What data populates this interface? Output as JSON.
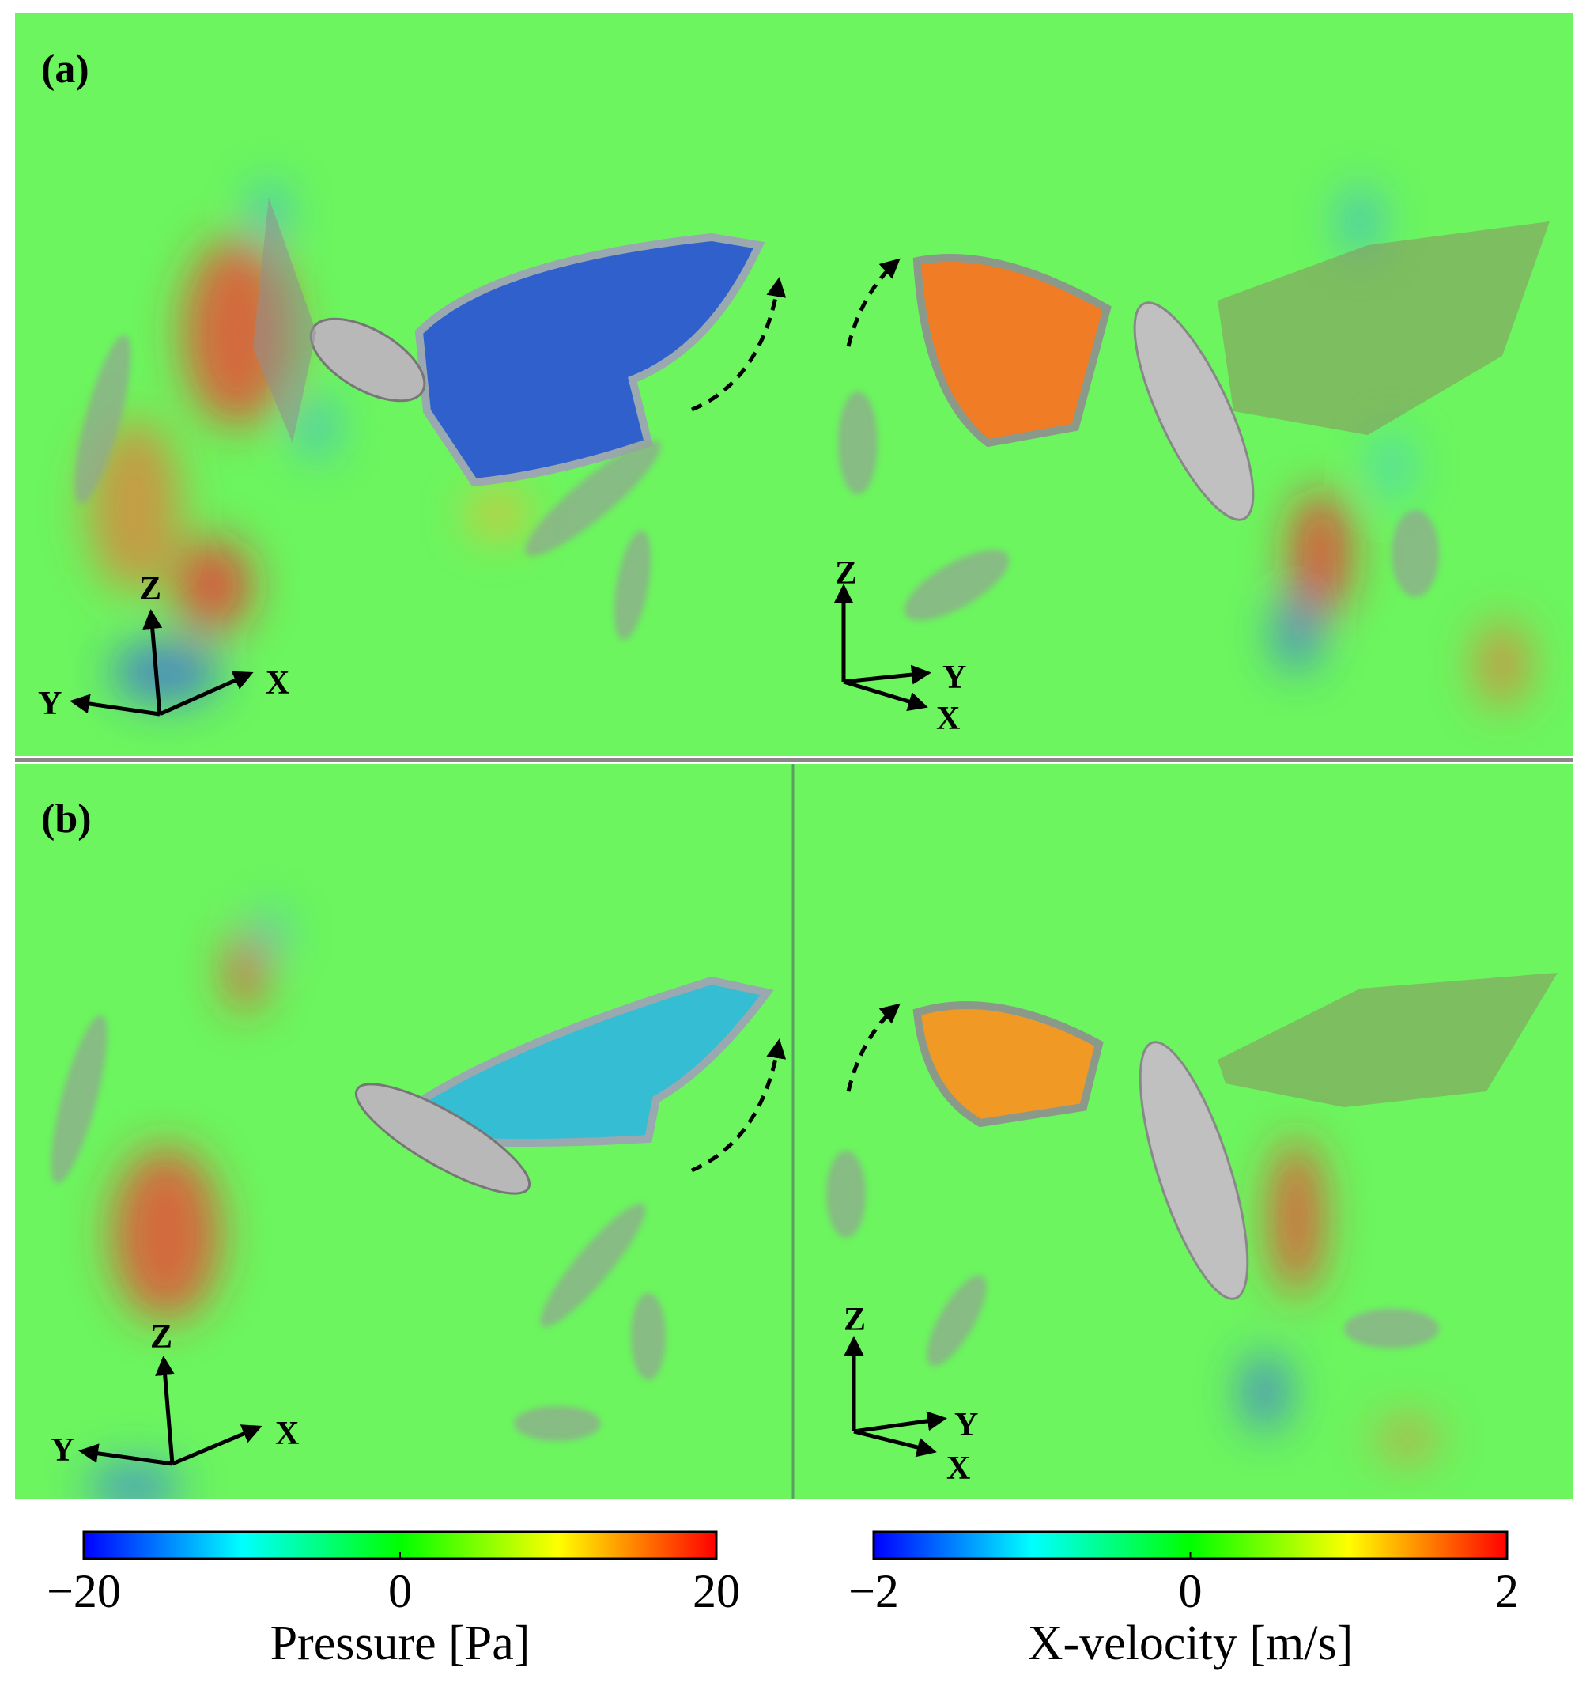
{
  "panels": [
    {
      "label": "(a)",
      "views": [
        {
          "axes": {
            "z": "Z",
            "y": "Y",
            "x": "X"
          }
        },
        {
          "axes": {
            "z": "Z",
            "y": "Y",
            "x": "X"
          }
        }
      ]
    },
    {
      "label": "(b)",
      "views": [
        {
          "axes": {
            "z": "Z",
            "y": "Y",
            "x": "X"
          }
        },
        {
          "axes": {
            "z": "Z",
            "y": "Y",
            "x": "X"
          }
        }
      ]
    }
  ],
  "colorbars": [
    {
      "label": "Pressure [Pa]",
      "range": [
        -20,
        20
      ],
      "ticks": [
        {
          "value": -20,
          "label": "−20"
        },
        0,
        20
      ],
      "colors": [
        "#0000ff",
        "#00ffff",
        "#00ff00",
        "#ffff00",
        "#ff0000"
      ]
    },
    {
      "label": "X-velocity [m/s]",
      "range": [
        -2,
        2
      ],
      "ticks": [
        {
          "value": -2,
          "label": "−2"
        },
        0,
        2
      ],
      "colors": [
        "#0000ff",
        "#00ffff",
        "#00ff00",
        "#ffff00",
        "#ff0000"
      ]
    }
  ]
}
